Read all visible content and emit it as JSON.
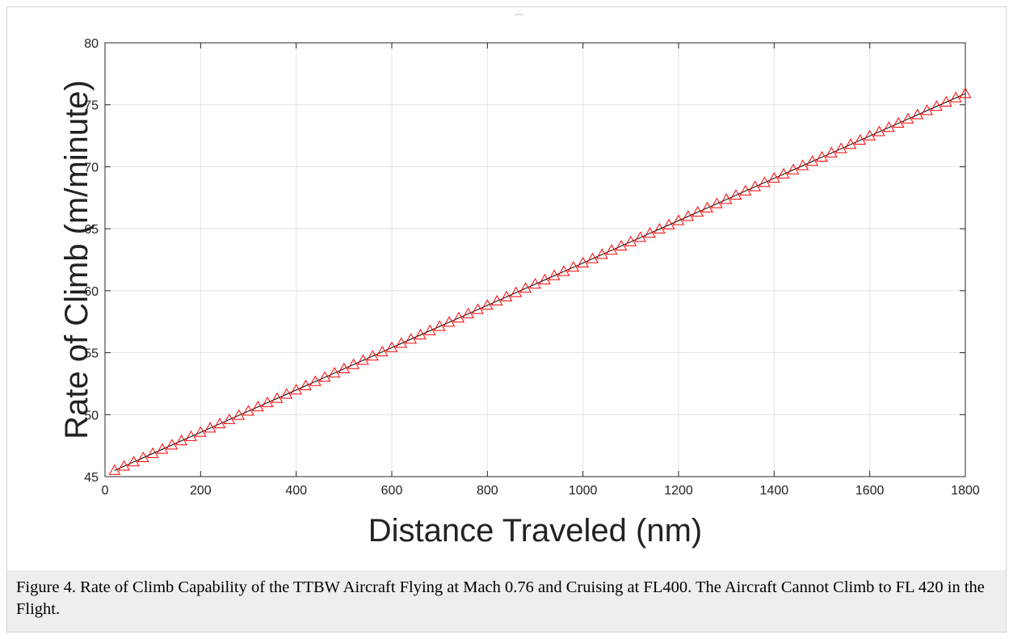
{
  "caption": "Figure 4. Rate of Climb Capability of the TTBW Aircraft Flying at Mach 0.76 and Cruising at FL400. The Aircraft Cannot Climb to FL 420 in the Flight.",
  "chart_data": {
    "type": "scatter",
    "title": "",
    "xlabel": "Distance Traveled (nm)",
    "ylabel": "Rate of Climb (m/minute)",
    "xlim": [
      0,
      1800
    ],
    "ylim": [
      45,
      80
    ],
    "xticks": [
      0,
      200,
      400,
      600,
      800,
      1000,
      1200,
      1400,
      1600,
      1800
    ],
    "yticks": [
      45,
      50,
      55,
      60,
      65,
      70,
      75,
      80
    ],
    "grid": true,
    "marker": "triangle",
    "marker_color": "#ff0000",
    "line_color": "#000000",
    "series": [
      {
        "x_start": 20,
        "x_end": 1800,
        "x_step": 20,
        "y_at_x_start": 45.5,
        "y_at_x_end": 75.9
      }
    ]
  }
}
